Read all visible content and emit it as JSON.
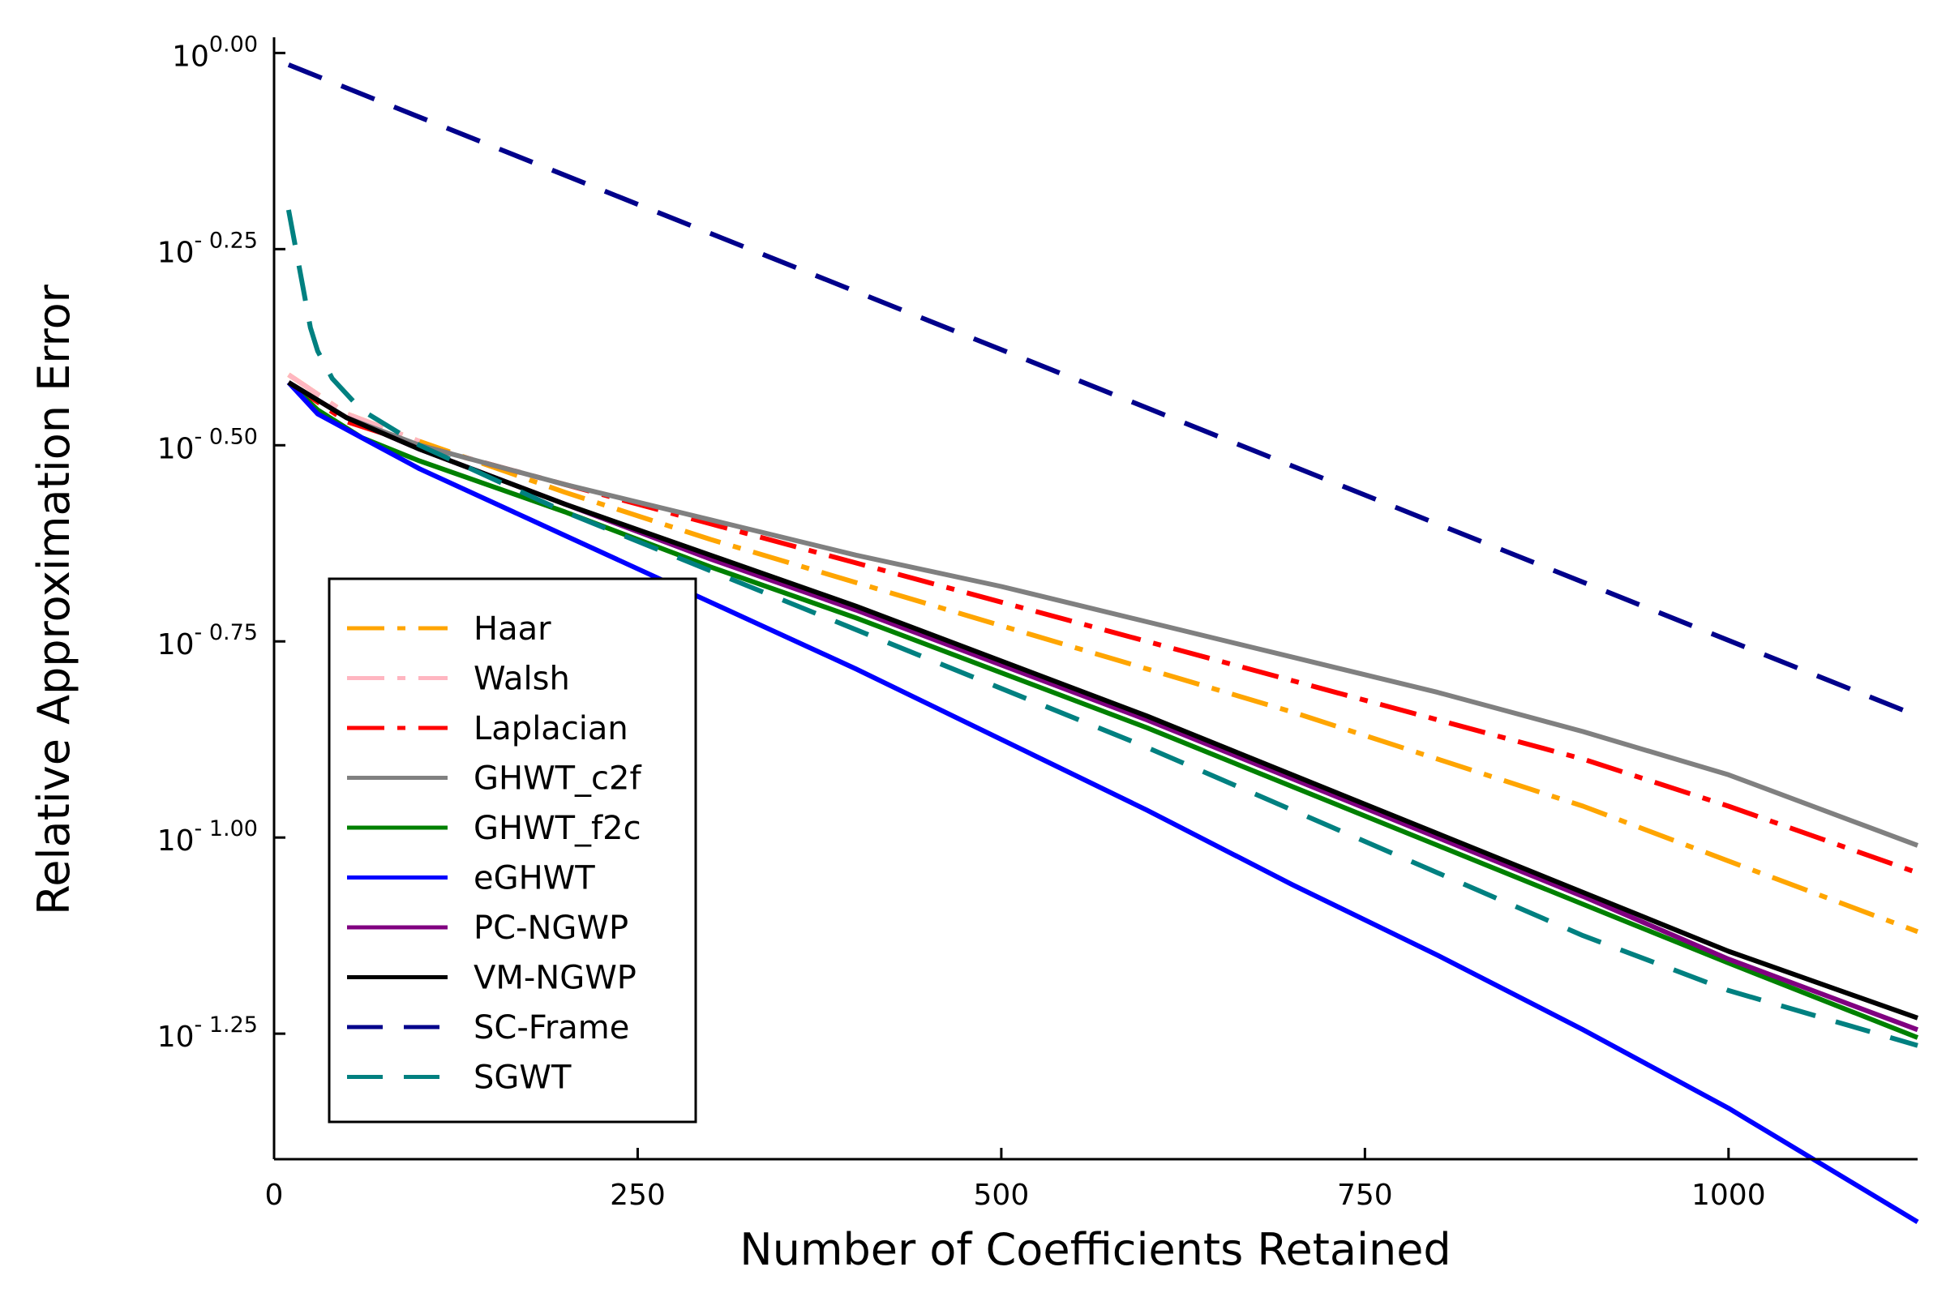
{
  "chart_data": {
    "type": "line",
    "xlabel": "Number of Coefficients Retained",
    "ylabel": "Relative Approximation Error",
    "xlim": [
      0,
      1130
    ],
    "ylim": [
      -1.41,
      0.02
    ],
    "y_scale": "log10",
    "grid": false,
    "legend_position": "bottom-left",
    "x_ticks": [
      {
        "value": 0,
        "label": "0"
      },
      {
        "value": 250,
        "label": "250"
      },
      {
        "value": 500,
        "label": "500"
      },
      {
        "value": 750,
        "label": "750"
      },
      {
        "value": 1000,
        "label": "1000"
      }
    ],
    "y_ticks": [
      {
        "value": 0,
        "base": "10",
        "exp": "0.00"
      },
      {
        "value": -0.25,
        "base": "10",
        "exp": "- 0.25"
      },
      {
        "value": -0.5,
        "base": "10",
        "exp": "- 0.50"
      },
      {
        "value": -0.75,
        "base": "10",
        "exp": "- 0.75"
      },
      {
        "value": -1.0,
        "base": "10",
        "exp": "- 1.00"
      },
      {
        "value": -1.25,
        "base": "10",
        "exp": "- 1.25"
      }
    ],
    "series": [
      {
        "name": "Haar",
        "color": "#FFA500",
        "style": "dashdot",
        "x": [
          10,
          50,
          100,
          200,
          300,
          400,
          500,
          600,
          700,
          800,
          900,
          1000,
          1130
        ],
        "y": [
          -0.41,
          -0.46,
          -0.495,
          -0.56,
          -0.62,
          -0.675,
          -0.73,
          -0.785,
          -0.84,
          -0.9,
          -0.96,
          -1.03,
          -1.12
        ]
      },
      {
        "name": "Walsh",
        "color": "#FFB6C1",
        "style": "dashdot",
        "x": [
          10,
          50,
          100
        ],
        "y": [
          -0.41,
          -0.46,
          -0.495
        ]
      },
      {
        "name": "Laplacian",
        "color": "#FF0000",
        "style": "dashdot",
        "x": [
          10,
          50,
          100,
          200,
          300,
          400,
          500,
          600,
          700,
          800,
          900,
          1000,
          1130
        ],
        "y": [
          -0.42,
          -0.47,
          -0.5,
          -0.55,
          -0.6,
          -0.65,
          -0.7,
          -0.75,
          -0.8,
          -0.85,
          -0.9,
          -0.96,
          -1.045
        ]
      },
      {
        "name": "GHWT_c2f",
        "color": "#808080",
        "style": "solid",
        "x": [
          10,
          50,
          100,
          200,
          300,
          400,
          500,
          600,
          700,
          800,
          900,
          1000,
          1130
        ],
        "y": [
          -0.42,
          -0.465,
          -0.5,
          -0.55,
          -0.595,
          -0.64,
          -0.68,
          -0.725,
          -0.77,
          -0.815,
          -0.865,
          -0.92,
          -1.01
        ]
      },
      {
        "name": "GHWT_f2c",
        "color": "#008000",
        "style": "solid",
        "x": [
          10,
          30,
          60,
          100,
          200,
          300,
          400,
          500,
          600,
          700,
          800,
          900,
          1000,
          1130
        ],
        "y": [
          -0.42,
          -0.455,
          -0.49,
          -0.52,
          -0.585,
          -0.655,
          -0.72,
          -0.79,
          -0.86,
          -0.935,
          -1.01,
          -1.085,
          -1.16,
          -1.255
        ]
      },
      {
        "name": "eGHWT",
        "color": "#0000FF",
        "style": "solid",
        "x": [
          10,
          30,
          70,
          100,
          200,
          300,
          400,
          500,
          600,
          700,
          800,
          900,
          1000,
          1130
        ],
        "y": [
          -0.42,
          -0.46,
          -0.5,
          -0.53,
          -0.615,
          -0.7,
          -0.785,
          -0.875,
          -0.965,
          -1.06,
          -1.15,
          -1.245,
          -1.345,
          -1.49
        ]
      },
      {
        "name": "PC-NGWP",
        "color": "#800080",
        "style": "solid",
        "x": [
          10,
          50,
          100,
          200,
          300,
          400,
          500,
          600,
          700,
          800,
          900,
          1000,
          1130
        ],
        "y": [
          -0.42,
          -0.465,
          -0.505,
          -0.575,
          -0.645,
          -0.71,
          -0.78,
          -0.85,
          -0.925,
          -1.0,
          -1.075,
          -1.155,
          -1.245
        ]
      },
      {
        "name": "VM-NGWP",
        "color": "#000000",
        "style": "solid",
        "x": [
          10,
          50,
          100,
          200,
          300,
          400,
          500,
          600,
          700,
          800,
          900,
          1000,
          1130
        ],
        "y": [
          -0.42,
          -0.465,
          -0.505,
          -0.575,
          -0.64,
          -0.705,
          -0.775,
          -0.845,
          -0.92,
          -0.995,
          -1.07,
          -1.145,
          -1.23
        ]
      },
      {
        "name": "SC-Frame",
        "color": "#00008B",
        "style": "dash",
        "x": [
          10,
          1130
        ],
        "y": [
          -0.015,
          -0.845
        ]
      },
      {
        "name": "SGWT",
        "color": "#008080",
        "style": "dash",
        "x": [
          10,
          15,
          20,
          25,
          30,
          40,
          60,
          100,
          200,
          300,
          400,
          500,
          600,
          700,
          800,
          900,
          1000,
          1130
        ],
        "y": [
          -0.2,
          -0.25,
          -0.3,
          -0.35,
          -0.38,
          -0.415,
          -0.455,
          -0.5,
          -0.585,
          -0.66,
          -0.735,
          -0.81,
          -0.885,
          -0.965,
          -1.045,
          -1.125,
          -1.195,
          -1.265
        ]
      }
    ]
  }
}
